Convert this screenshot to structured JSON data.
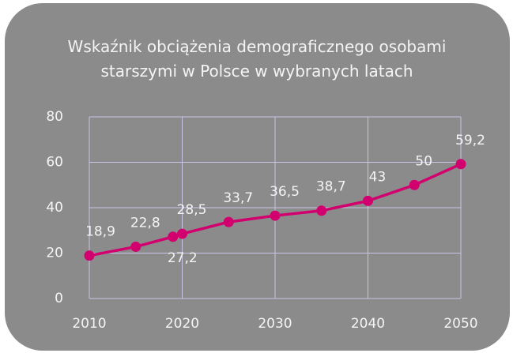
{
  "chart_data": {
    "type": "line",
    "title": "Wskaźnik obciążenia demograficznego osobami starszymi w Polsce w wybranych latach",
    "x": [
      2010,
      2015,
      2019,
      2020,
      2025,
      2030,
      2035,
      2040,
      2045,
      2050
    ],
    "series": [
      {
        "name": "Wskaźnik",
        "color": "#d1006e",
        "values": [
          18.9,
          22.8,
          27.2,
          28.5,
          33.7,
          36.5,
          38.7,
          43,
          50,
          59.2
        ],
        "value_labels": [
          "18,9",
          "22,8",
          "27,2",
          "28,5",
          "33,7",
          "36,5",
          "38,7",
          "43",
          "50",
          "59,2"
        ]
      }
    ],
    "xlim": [
      2010,
      2050
    ],
    "xticks": [
      2010,
      2020,
      2030,
      2040,
      2050
    ],
    "ylim": [
      0,
      80
    ],
    "yticks": [
      0,
      20,
      40,
      60,
      80
    ],
    "grid": true
  }
}
